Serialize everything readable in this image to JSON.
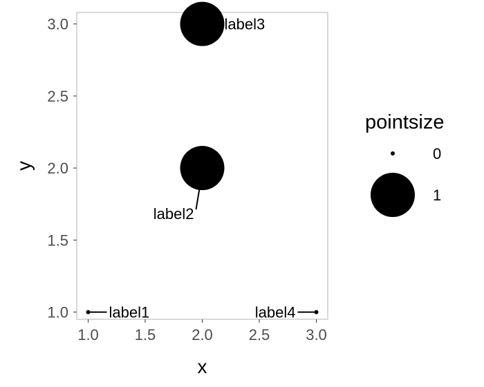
{
  "chart_data": {
    "type": "scatter",
    "title": "",
    "xlabel": "x",
    "ylabel": "y",
    "xlim": [
      0.9,
      3.1
    ],
    "ylim": [
      0.95,
      3.08
    ],
    "xticks": [
      "1.0",
      "1.5",
      "2.0",
      "2.5",
      "3.0"
    ],
    "yticks": [
      "1.0",
      "1.5",
      "2.0",
      "2.5",
      "3.0"
    ],
    "grid": false,
    "points": [
      {
        "x": 1.0,
        "y": 1.0,
        "pointsize": 0,
        "label": "label1",
        "label_side": "right"
      },
      {
        "x": 2.0,
        "y": 2.0,
        "pointsize": 1,
        "label": "label2",
        "label_side": "below-left"
      },
      {
        "x": 2.0,
        "y": 3.0,
        "pointsize": 1,
        "label": "label3",
        "label_side": "right"
      },
      {
        "x": 3.0,
        "y": 1.0,
        "pointsize": 0,
        "label": "label4",
        "label_side": "left"
      }
    ],
    "legend": {
      "title": "pointsize",
      "position": "right",
      "entries": [
        {
          "label": "0",
          "pointsize": 0
        },
        {
          "label": "1",
          "pointsize": 1
        }
      ]
    },
    "colors": {
      "point": "#000000",
      "panel_border": "#b3b3b3",
      "tick_text": "#4d4d4d"
    }
  }
}
